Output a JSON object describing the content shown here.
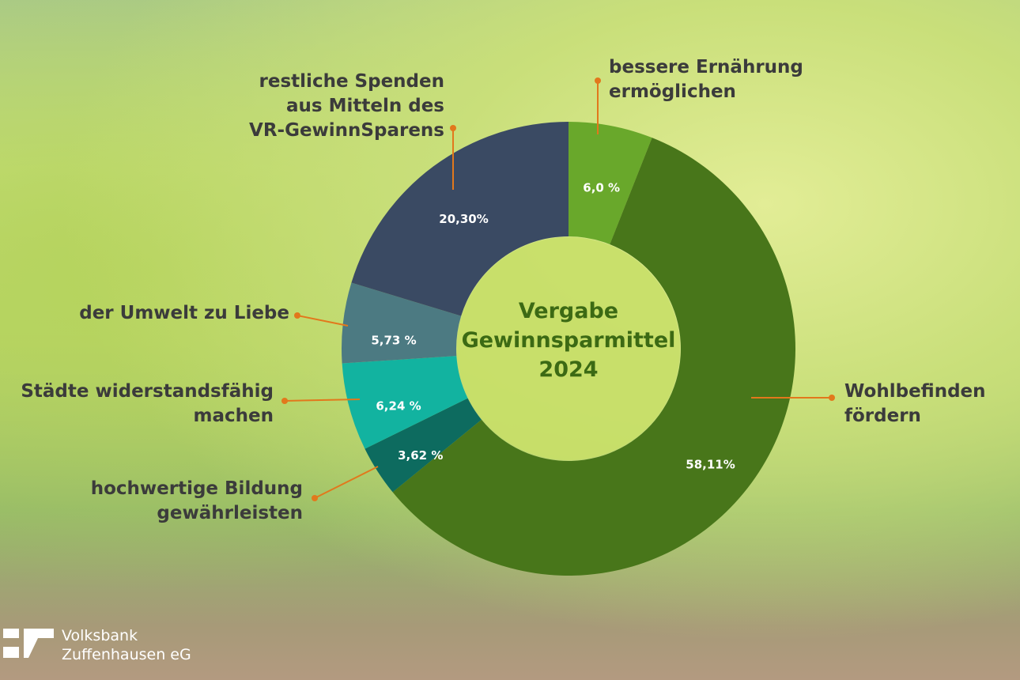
{
  "chart_data": {
    "type": "pie",
    "title": "Vergabe\nGewinnsparmittel\n2024",
    "categories": [
      "bessere Ernährung\nermöglichen",
      "Wohlbefinden\nfördern",
      "hochwertige Bildung\ngewährleisten",
      "Städte widerstandsfähig\nmachen",
      "der Umwelt zu Liebe",
      "restliche Spenden\naus Mitteln des\nVR-GewinnSparens"
    ],
    "values": [
      6.0,
      58.11,
      3.62,
      6.24,
      5.73,
      20.3
    ],
    "value_labels": [
      "6,0 %",
      "58,11%",
      "3,62 %",
      "6,24 %",
      "5,73 %",
      "20,30%"
    ],
    "colors": [
      "#69a82b",
      "#48761a",
      "#0d6b5f",
      "#12b3a0",
      "#4c7a82",
      "#3a4a63"
    ]
  },
  "logo": {
    "text": "Volksbank\nZuffenhausen eG"
  }
}
